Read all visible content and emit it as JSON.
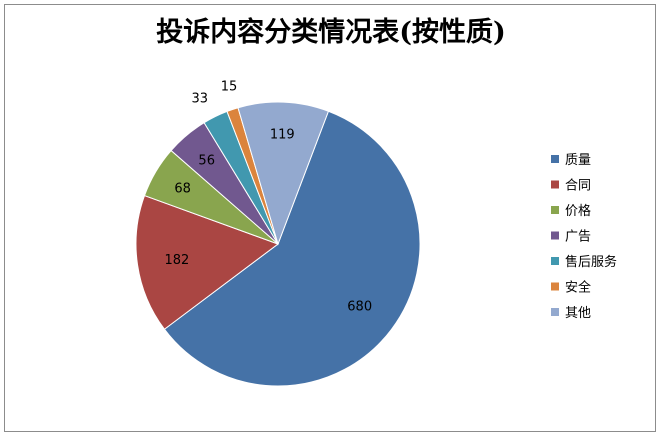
{
  "chart_data": {
    "type": "pie",
    "title": "投诉内容分类情况表(按性质)",
    "legend_position": "right",
    "categories": [
      "质量",
      "合同",
      "价格",
      "广告",
      "售后服务",
      "安全",
      "其他"
    ],
    "values": [
      680,
      182,
      68,
      56,
      33,
      15,
      119
    ],
    "colors": [
      "#4572A7",
      "#AA4643",
      "#89A54E",
      "#71588F",
      "#4198AF",
      "#DB843D",
      "#93A9CF"
    ]
  }
}
